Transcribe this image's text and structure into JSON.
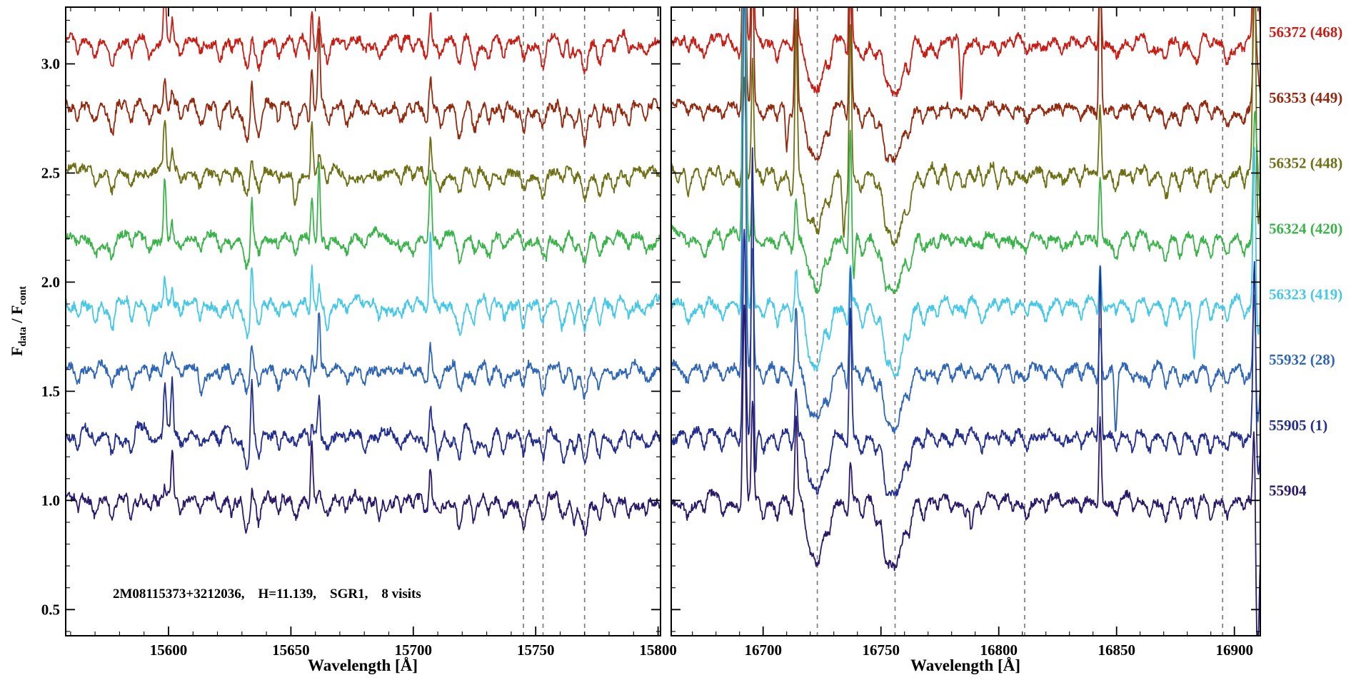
{
  "chart_data": {
    "type": "line",
    "title": "",
    "xlabel": "Wavelength [Å]",
    "ylabel_parts": [
      "F",
      "data",
      " / F",
      "cont"
    ],
    "annotation": "2M08115373+3212036,    H=11.139,    SGR1,    8 visits",
    "ylim": [
      0.38,
      3.26
    ],
    "y_major_ticks": [
      0.5,
      1.0,
      1.5,
      2.0,
      2.5,
      3.0
    ],
    "y_minor_step": 0.1,
    "grid": false,
    "legend_position": "right-outside",
    "series": [
      {
        "label": "56372 (468)",
        "color": "#c81e16",
        "offset": 3.1
      },
      {
        "label": "56353 (449)",
        "color": "#93290e",
        "offset": 2.8
      },
      {
        "label": "56352 (448)",
        "color": "#6e7015",
        "offset": 2.5
      },
      {
        "label": "56324 (420)",
        "color": "#3ab34a",
        "offset": 2.2
      },
      {
        "label": "56323 (419)",
        "color": "#46c8e6",
        "offset": 1.9
      },
      {
        "label": "55932 (28)",
        "color": "#2f66b5",
        "offset": 1.6
      },
      {
        "label": "55905 (1)",
        "color": "#232e8e",
        "offset": 1.3
      },
      {
        "label": "55904",
        "color": "#2b1a6a",
        "offset": 1.0
      }
    ],
    "panels": [
      {
        "xlim": [
          15558,
          15801
        ],
        "x_major_ticks": [
          15600,
          15650,
          15700,
          15750,
          15800
        ],
        "x_minor_step": 10,
        "dashed_lines": [
          15745,
          15753,
          15770
        ],
        "absorption": [
          [
            15563,
            0.05,
            0.8
          ],
          [
            15570,
            0.06,
            0.8
          ],
          [
            15577,
            0.09,
            0.9
          ],
          [
            15585,
            0.07,
            0.8
          ],
          [
            15592,
            0.05,
            0.7
          ],
          [
            15605,
            0.05,
            0.7
          ],
          [
            15613,
            0.06,
            0.8
          ],
          [
            15621,
            0.07,
            0.8
          ],
          [
            15626,
            0.05,
            0.6
          ],
          [
            15632,
            0.13,
            1.1
          ],
          [
            15637,
            0.1,
            0.9
          ],
          [
            15645,
            0.05,
            0.7
          ],
          [
            15652,
            0.07,
            0.8
          ],
          [
            15658,
            0.08,
            0.8
          ],
          [
            15665,
            0.07,
            0.8
          ],
          [
            15673,
            0.05,
            0.7
          ],
          [
            15680,
            0.04,
            0.7
          ],
          [
            15686,
            0.05,
            0.7
          ],
          [
            15695,
            0.05,
            0.7
          ],
          [
            15700,
            0.04,
            0.6
          ],
          [
            15705,
            0.06,
            0.8
          ],
          [
            15711,
            0.05,
            0.7
          ],
          [
            15719,
            0.11,
            1.0
          ],
          [
            15725,
            0.09,
            0.9
          ],
          [
            15731,
            0.07,
            0.8
          ],
          [
            15737,
            0.06,
            0.8
          ],
          [
            15745,
            0.09,
            0.9
          ],
          [
            15753,
            0.1,
            0.9
          ],
          [
            15761,
            0.08,
            0.9
          ],
          [
            15766,
            0.06,
            0.7
          ],
          [
            15770,
            0.12,
            1.1
          ],
          [
            15776,
            0.09,
            0.9
          ],
          [
            15782,
            0.06,
            0.8
          ],
          [
            15788,
            0.05,
            0.7
          ],
          [
            15795,
            0.04,
            0.7
          ]
        ],
        "emission": [
          [
            15598.5,
            0.3,
            0.5
          ],
          [
            15601.5,
            0.2,
            0.45
          ],
          [
            15634,
            0.18,
            0.45
          ],
          [
            15658.5,
            0.28,
            0.5
          ],
          [
            15661.5,
            0.22,
            0.45
          ],
          [
            15707,
            0.24,
            0.45
          ]
        ]
      },
      {
        "xlim": [
          16661,
          16911
        ],
        "x_major_ticks": [
          16700,
          16750,
          16800,
          16850,
          16900
        ],
        "x_minor_step": 10,
        "dashed_lines": [
          16723,
          16756,
          16811,
          16895
        ],
        "absorption": [
          [
            16668,
            0.05,
            0.8
          ],
          [
            16675,
            0.06,
            0.8
          ],
          [
            16683,
            0.05,
            0.8
          ],
          [
            16690,
            0.04,
            0.7
          ],
          [
            16700,
            0.06,
            0.8
          ],
          [
            16706,
            0.07,
            0.8
          ],
          [
            16712,
            0.06,
            0.8
          ],
          [
            16719,
            0.1,
            1.2
          ],
          [
            16723,
            0.24,
            2.6
          ],
          [
            16728,
            0.1,
            1.0
          ],
          [
            16736,
            0.09,
            1.0
          ],
          [
            16742,
            0.07,
            0.9
          ],
          [
            16748,
            0.08,
            1.0
          ],
          [
            16752,
            0.12,
            1.2
          ],
          [
            16756,
            0.27,
            3.0
          ],
          [
            16762,
            0.1,
            1.0
          ],
          [
            16768,
            0.07,
            0.9
          ],
          [
            16774,
            0.05,
            0.8
          ],
          [
            16780,
            0.04,
            0.8
          ],
          [
            16786,
            0.04,
            0.7
          ],
          [
            16793,
            0.05,
            0.8
          ],
          [
            16800,
            0.04,
            0.7
          ],
          [
            16806,
            0.04,
            0.7
          ],
          [
            16812,
            0.05,
            0.8
          ],
          [
            16820,
            0.04,
            0.7
          ],
          [
            16827,
            0.04,
            0.7
          ],
          [
            16835,
            0.05,
            0.8
          ],
          [
            16842,
            0.04,
            0.7
          ],
          [
            16850,
            0.05,
            0.8
          ],
          [
            16857,
            0.06,
            0.8
          ],
          [
            16864,
            0.05,
            0.8
          ],
          [
            16871,
            0.07,
            0.9
          ],
          [
            16877,
            0.06,
            0.8
          ],
          [
            16884,
            0.08,
            0.9
          ],
          [
            16890,
            0.07,
            0.9
          ],
          [
            16897,
            0.05,
            0.8
          ],
          [
            16904,
            0.05,
            0.8
          ]
        ],
        "emission": [
          [
            16692,
            1.6,
            0.6
          ],
          [
            16695.5,
            0.9,
            0.5
          ],
          [
            16714,
            0.6,
            0.5
          ],
          [
            16737,
            0.55,
            0.5
          ],
          [
            16843,
            0.7,
            0.5
          ],
          [
            16908.5,
            1.3,
            0.6
          ]
        ]
      }
    ]
  }
}
